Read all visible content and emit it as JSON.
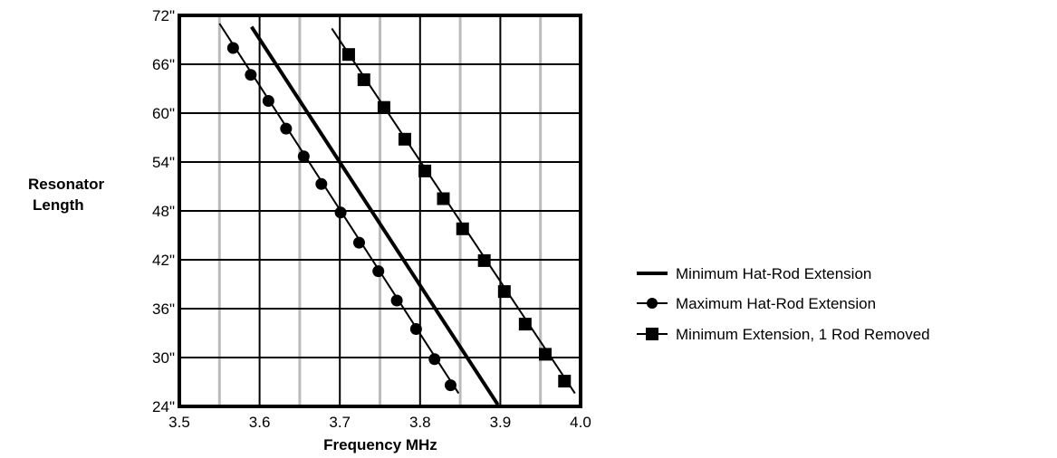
{
  "chart_data": {
    "type": "line",
    "title": "",
    "xlabel": "Frequency MHz",
    "ylabel": "Resonator Length",
    "ylabel_lines": [
      "Resonator",
      "Length"
    ],
    "xlim": [
      3.5,
      4.0
    ],
    "ylim": [
      24,
      72
    ],
    "x_ticks": [
      3.5,
      3.6,
      3.7,
      3.8,
      3.9,
      4.0
    ],
    "x_tick_labels": [
      "3.5",
      "3.6",
      "3.7",
      "3.8",
      "3.9",
      "4.0"
    ],
    "x_minor_gridlines": [
      3.55,
      3.65,
      3.75,
      3.85,
      3.95
    ],
    "y_ticks": [
      24,
      30,
      36,
      42,
      48,
      54,
      60,
      66,
      72
    ],
    "y_tick_labels": [
      "24\"",
      "30\"",
      "36\"",
      "42\"",
      "48\"",
      "54\"",
      "60\"",
      "66\"",
      "72\""
    ],
    "grid": true,
    "legend_position": "right",
    "series": [
      {
        "name": "Minimum Hat-Rod Extension",
        "marker": "none",
        "line_weight": "thick",
        "color": "#000000",
        "line": [
          [
            3.59,
            70.6
          ],
          [
            3.897,
            24.2
          ]
        ],
        "points": []
      },
      {
        "name": "Maximum Hat-Rod Extension",
        "marker": "circle",
        "line_weight": "thin",
        "color": "#000000",
        "line": [
          [
            3.55,
            71.0
          ],
          [
            3.848,
            25.6
          ]
        ],
        "points": [
          [
            3.567,
            68.0
          ],
          [
            3.589,
            64.7
          ],
          [
            3.611,
            61.5
          ],
          [
            3.633,
            58.1
          ],
          [
            3.655,
            54.7
          ],
          [
            3.677,
            51.3
          ],
          [
            3.701,
            47.8
          ],
          [
            3.724,
            44.1
          ],
          [
            3.748,
            40.6
          ],
          [
            3.771,
            37.0
          ],
          [
            3.795,
            33.5
          ],
          [
            3.818,
            29.8
          ],
          [
            3.838,
            26.6
          ]
        ]
      },
      {
        "name": "Minimum Extension, 1 Rod Removed",
        "marker": "square",
        "line_weight": "thin",
        "color": "#000000",
        "line": [
          [
            3.69,
            70.4
          ],
          [
            3.993,
            25.6
          ]
        ],
        "points": [
          [
            3.711,
            67.2
          ],
          [
            3.73,
            64.1
          ],
          [
            3.755,
            60.7
          ],
          [
            3.781,
            56.8
          ],
          [
            3.806,
            52.9
          ],
          [
            3.829,
            49.5
          ],
          [
            3.853,
            45.8
          ],
          [
            3.88,
            41.9
          ],
          [
            3.905,
            38.1
          ],
          [
            3.931,
            34.1
          ],
          [
            3.956,
            30.4
          ],
          [
            3.98,
            27.1
          ]
        ]
      }
    ]
  }
}
